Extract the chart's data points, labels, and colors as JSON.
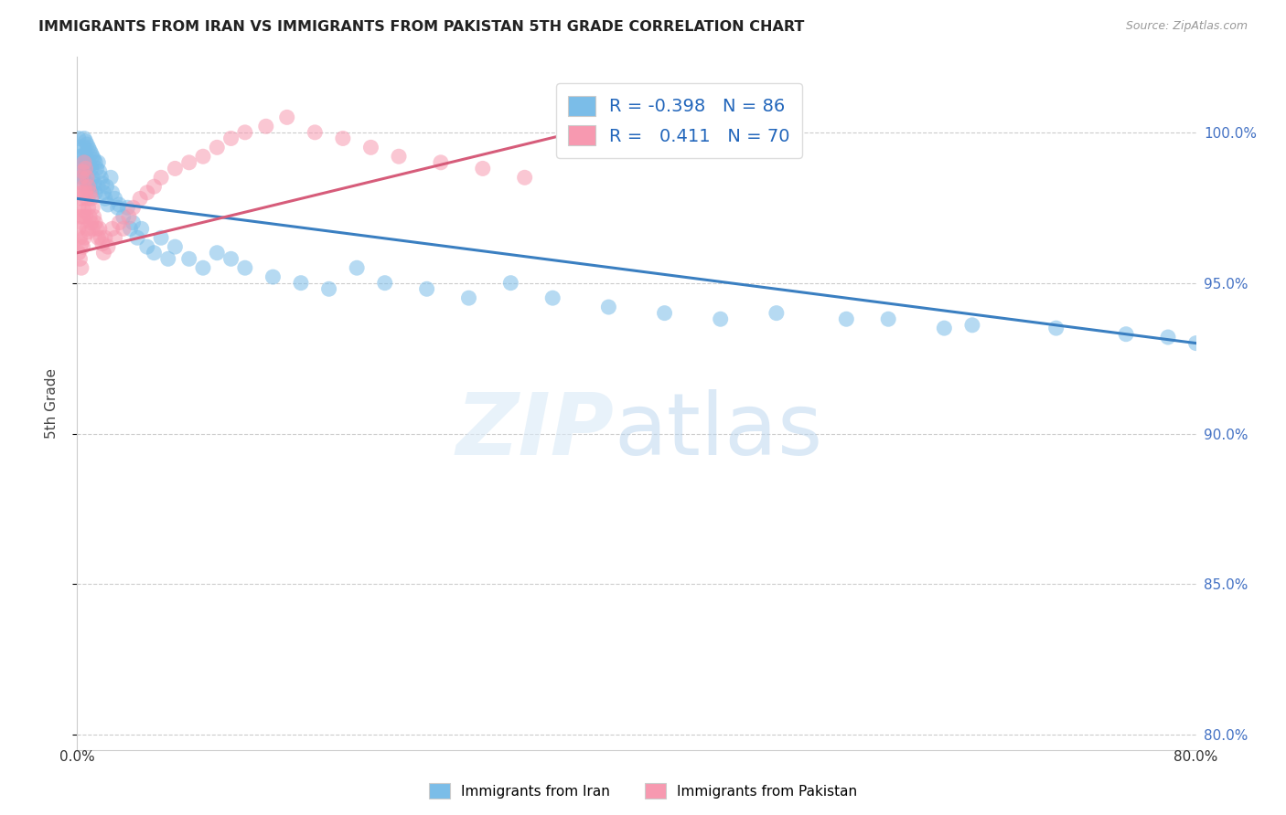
{
  "title": "IMMIGRANTS FROM IRAN VS IMMIGRANTS FROM PAKISTAN 5TH GRADE CORRELATION CHART",
  "source": "Source: ZipAtlas.com",
  "ylabel": "5th Grade",
  "iran_R": -0.398,
  "iran_N": 86,
  "pakistan_R": 0.411,
  "pakistan_N": 70,
  "iran_color": "#7bbde8",
  "pakistan_color": "#f799b0",
  "iran_line_color": "#3a7fc1",
  "pakistan_line_color": "#d65c7a",
  "xlim": [
    0.0,
    0.8
  ],
  "ylim": [
    0.795,
    1.025
  ],
  "yticks": [
    0.8,
    0.85,
    0.9,
    0.95,
    1.0
  ],
  "ytick_labels": [
    "80.0%",
    "85.0%",
    "90.0%",
    "95.0%",
    "100.0%"
  ],
  "iran_line_x0": 0.0,
  "iran_line_y0": 0.978,
  "iran_line_x1": 0.8,
  "iran_line_y1": 0.93,
  "pak_line_x0": 0.0,
  "pak_line_y0": 0.96,
  "pak_line_x1": 0.4,
  "pak_line_y1": 1.005,
  "iran_x": [
    0.001,
    0.002,
    0.002,
    0.003,
    0.003,
    0.003,
    0.004,
    0.004,
    0.004,
    0.005,
    0.005,
    0.005,
    0.005,
    0.006,
    0.006,
    0.006,
    0.007,
    0.007,
    0.007,
    0.008,
    0.008,
    0.008,
    0.009,
    0.009,
    0.009,
    0.01,
    0.01,
    0.01,
    0.011,
    0.011,
    0.012,
    0.012,
    0.013,
    0.013,
    0.014,
    0.015,
    0.015,
    0.016,
    0.017,
    0.018,
    0.019,
    0.02,
    0.021,
    0.022,
    0.024,
    0.025,
    0.027,
    0.029,
    0.03,
    0.033,
    0.036,
    0.038,
    0.04,
    0.043,
    0.046,
    0.05,
    0.055,
    0.06,
    0.065,
    0.07,
    0.08,
    0.09,
    0.1,
    0.11,
    0.12,
    0.14,
    0.16,
    0.18,
    0.2,
    0.22,
    0.25,
    0.28,
    0.31,
    0.34,
    0.38,
    0.42,
    0.46,
    0.5,
    0.55,
    0.62,
    0.7,
    0.75,
    0.78,
    0.8,
    0.64,
    0.58
  ],
  "iran_y": [
    0.998,
    0.995,
    0.992,
    0.99,
    0.988,
    0.985,
    0.992,
    0.987,
    0.983,
    0.998,
    0.995,
    0.99,
    0.985,
    0.997,
    0.993,
    0.988,
    0.996,
    0.991,
    0.985,
    0.995,
    0.99,
    0.983,
    0.994,
    0.989,
    0.982,
    0.993,
    0.988,
    0.98,
    0.992,
    0.985,
    0.991,
    0.983,
    0.99,
    0.98,
    0.988,
    0.99,
    0.982,
    0.987,
    0.985,
    0.983,
    0.98,
    0.978,
    0.982,
    0.976,
    0.985,
    0.98,
    0.978,
    0.975,
    0.976,
    0.972,
    0.975,
    0.968,
    0.97,
    0.965,
    0.968,
    0.962,
    0.96,
    0.965,
    0.958,
    0.962,
    0.958,
    0.955,
    0.96,
    0.958,
    0.955,
    0.952,
    0.95,
    0.948,
    0.955,
    0.95,
    0.948,
    0.945,
    0.95,
    0.945,
    0.942,
    0.94,
    0.938,
    0.94,
    0.938,
    0.935,
    0.935,
    0.933,
    0.932,
    0.93,
    0.936,
    0.938
  ],
  "pakistan_x": [
    0.001,
    0.001,
    0.001,
    0.002,
    0.002,
    0.002,
    0.002,
    0.003,
    0.003,
    0.003,
    0.003,
    0.003,
    0.004,
    0.004,
    0.004,
    0.004,
    0.005,
    0.005,
    0.005,
    0.005,
    0.006,
    0.006,
    0.006,
    0.007,
    0.007,
    0.007,
    0.008,
    0.008,
    0.008,
    0.009,
    0.009,
    0.01,
    0.01,
    0.011,
    0.011,
    0.012,
    0.013,
    0.014,
    0.015,
    0.016,
    0.017,
    0.018,
    0.019,
    0.02,
    0.022,
    0.025,
    0.027,
    0.03,
    0.033,
    0.037,
    0.04,
    0.045,
    0.05,
    0.055,
    0.06,
    0.07,
    0.08,
    0.09,
    0.1,
    0.11,
    0.12,
    0.135,
    0.15,
    0.17,
    0.19,
    0.21,
    0.23,
    0.26,
    0.29,
    0.32
  ],
  "pakistan_y": [
    0.975,
    0.968,
    0.96,
    0.98,
    0.972,
    0.965,
    0.958,
    0.985,
    0.978,
    0.97,
    0.963,
    0.955,
    0.987,
    0.98,
    0.972,
    0.962,
    0.99,
    0.982,
    0.974,
    0.965,
    0.988,
    0.98,
    0.972,
    0.985,
    0.978,
    0.968,
    0.982,
    0.975,
    0.967,
    0.98,
    0.972,
    0.978,
    0.97,
    0.975,
    0.968,
    0.972,
    0.97,
    0.968,
    0.965,
    0.968,
    0.965,
    0.963,
    0.96,
    0.965,
    0.962,
    0.968,
    0.965,
    0.97,
    0.968,
    0.972,
    0.975,
    0.978,
    0.98,
    0.982,
    0.985,
    0.988,
    0.99,
    0.992,
    0.995,
    0.998,
    1.0,
    1.002,
    1.005,
    1.0,
    0.998,
    0.995,
    0.992,
    0.99,
    0.988,
    0.985
  ]
}
